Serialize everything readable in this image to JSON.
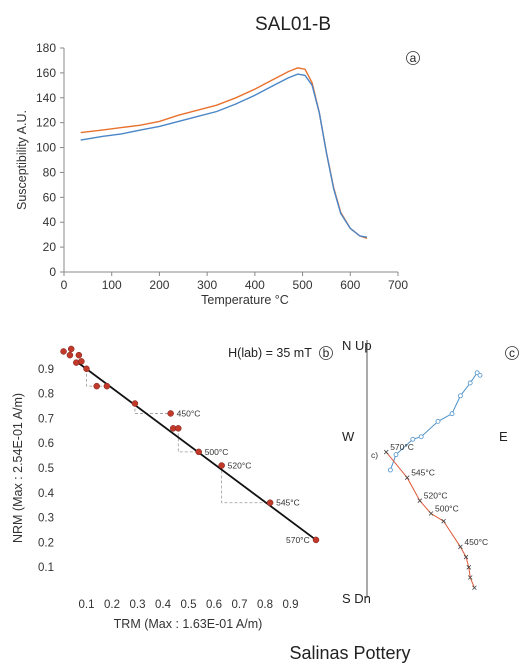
{
  "title": "SAL01-B",
  "footer": "Salinas Pottery",
  "colors": {
    "heat": "#e8722e",
    "cool": "#4a86c8",
    "fit": "#111111",
    "point": "#c0392b",
    "zh": "#4a90c8",
    "zv": "#e05a3a"
  },
  "chart_data": [
    {
      "type": "line",
      "panel_label": "a",
      "xlabel": "Temperature °C",
      "ylabel": "Susceptibility A.U.",
      "xlim": [
        0,
        700
      ],
      "ylim": [
        0,
        180
      ],
      "x_ticks": [
        "0",
        "100",
        "200",
        "300",
        "400",
        "500",
        "600",
        "700"
      ],
      "y_ticks": [
        "0",
        "20",
        "40",
        "60",
        "80",
        "100",
        "120",
        "140",
        "160",
        "180"
      ],
      "legend": "none",
      "series": [
        {
          "color": "#e8722e",
          "x": [
            35,
            80,
            120,
            160,
            200,
            240,
            280,
            320,
            360,
            400,
            440,
            470,
            490,
            505,
            520,
            535,
            550,
            565,
            580,
            600,
            620,
            635
          ],
          "y": [
            112,
            114,
            116,
            118,
            121,
            126,
            130,
            134,
            140,
            147,
            155,
            161,
            164,
            163,
            152,
            128,
            96,
            68,
            48,
            35,
            29,
            27
          ]
        },
        {
          "color": "#4a86c8",
          "x": [
            35,
            80,
            120,
            160,
            200,
            240,
            280,
            320,
            360,
            400,
            440,
            470,
            490,
            505,
            520,
            535,
            550,
            565,
            580,
            600,
            620,
            635
          ],
          "y": [
            106,
            109,
            111,
            114,
            117,
            121,
            125,
            129,
            135,
            142,
            150,
            156,
            159,
            158,
            150,
            128,
            96,
            67,
            47,
            35,
            29,
            28
          ]
        }
      ]
    },
    {
      "type": "scatter",
      "panel_label": "b",
      "annotation": "H(lab) = 35 mT",
      "xlabel": "TRM (Max : 1.63E-01 A/m)",
      "ylabel": "NRM (Max : 2.54E-01 A/m)",
      "xlim": [
        0,
        1
      ],
      "ylim": [
        0,
        1
      ],
      "x_ticks": [
        "0.1",
        "0.2",
        "0.3",
        "0.4",
        "0.5",
        "0.6",
        "0.7",
        "0.8",
        "0.9"
      ],
      "y_ticks": [
        "0.1",
        "0.2",
        "0.3",
        "0.4",
        "0.5",
        "0.6",
        "0.7",
        "0.8",
        "0.9"
      ],
      "points": [
        {
          "x": 0.01,
          "y": 0.97
        },
        {
          "x": 0.04,
          "y": 0.98
        },
        {
          "x": 0.035,
          "y": 0.955
        },
        {
          "x": 0.07,
          "y": 0.955
        },
        {
          "x": 0.06,
          "y": 0.925
        },
        {
          "x": 0.08,
          "y": 0.93
        },
        {
          "x": 0.1,
          "y": 0.9
        },
        {
          "x": 0.14,
          "y": 0.83
        },
        {
          "x": 0.18,
          "y": 0.83
        },
        {
          "x": 0.29,
          "y": 0.76
        },
        {
          "x": 0.43,
          "y": 0.72
        },
        {
          "x": 0.44,
          "y": 0.66
        },
        {
          "x": 0.46,
          "y": 0.66
        },
        {
          "x": 0.54,
          "y": 0.565
        },
        {
          "x": 0.63,
          "y": 0.51
        },
        {
          "x": 0.82,
          "y": 0.36
        },
        {
          "x": 1.0,
          "y": 0.21
        }
      ],
      "fit_line": {
        "x": [
          0.06,
          1.0
        ],
        "y": [
          0.93,
          0.21
        ]
      },
      "step_labels": [
        {
          "text": "450°C",
          "x": 0.43,
          "y": 0.72
        },
        {
          "text": "500°C",
          "x": 0.54,
          "y": 0.565
        },
        {
          "text": "520°C",
          "x": 0.63,
          "y": 0.51
        },
        {
          "text": "545°C",
          "x": 0.82,
          "y": 0.36
        },
        {
          "text": "570°C",
          "x": 1.0,
          "y": 0.21
        }
      ]
    },
    {
      "type": "scatter",
      "panel_label": "c",
      "subtitle": "c)",
      "directions": {
        "top": "N  Up",
        "bottom": "S  Dn",
        "left": "W",
        "right": "E"
      },
      "horizontal_projection": [
        [
          0.36,
          0.5
        ],
        [
          0.4,
          0.56
        ],
        [
          0.52,
          0.62
        ],
        [
          0.58,
          0.63
        ],
        [
          0.7,
          0.69
        ],
        [
          0.8,
          0.72
        ],
        [
          0.86,
          0.79
        ],
        [
          0.93,
          0.84
        ],
        [
          0.98,
          0.88
        ],
        [
          1.0,
          0.87
        ]
      ],
      "vertical_projection": [
        [
          0.33,
          0.57
        ],
        [
          0.48,
          0.47
        ],
        [
          0.57,
          0.38
        ],
        [
          0.65,
          0.33
        ],
        [
          0.74,
          0.3
        ],
        [
          0.86,
          0.2
        ],
        [
          0.9,
          0.16
        ],
        [
          0.92,
          0.12
        ],
        [
          0.93,
          0.08
        ],
        [
          0.96,
          0.04
        ]
      ],
      "step_labels": [
        {
          "text": "570°C",
          "x": 0.33,
          "y": 0.57
        },
        {
          "text": "545°C",
          "x": 0.48,
          "y": 0.47
        },
        {
          "text": "520°C",
          "x": 0.57,
          "y": 0.38
        },
        {
          "text": "500°C",
          "x": 0.65,
          "y": 0.33
        },
        {
          "text": "450°C",
          "x": 0.86,
          "y": 0.2
        }
      ]
    }
  ]
}
